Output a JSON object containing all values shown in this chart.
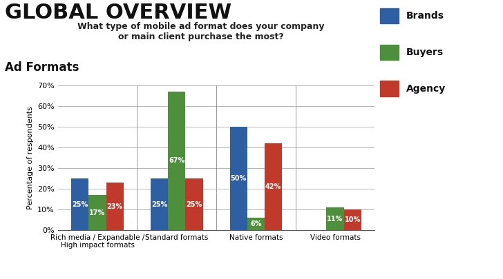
{
  "title_main": "GLOBAL OVERVIEW",
  "title_sub": "Ad Formats",
  "question": "What type of mobile ad format does your company\nor main client purchase the most?",
  "categories": [
    "Rich media / Expandable /\nHigh impact formats",
    "Standard formats",
    "Native formats",
    "Video formats"
  ],
  "series": {
    "Brands": [
      25,
      25,
      50,
      0
    ],
    "Buyers": [
      17,
      67,
      6,
      11
    ],
    "Agency": [
      23,
      25,
      42,
      10
    ]
  },
  "colors": {
    "Brands": "#2e5fa3",
    "Buyers": "#4e8f3c",
    "Agency": "#c0392b"
  },
  "ylabel": "Percentage of respondents",
  "ylim": [
    0,
    70
  ],
  "yticks": [
    0,
    10,
    20,
    30,
    40,
    50,
    60,
    70
  ],
  "ytick_labels": [
    "0%",
    "10%",
    "20%",
    "30%",
    "40%",
    "50%",
    "60%",
    "70%"
  ],
  "bar_width": 0.22,
  "background_color": "#ffffff",
  "label_color": "#ffffff",
  "label_fontsize": 7.0,
  "title_fontsize_main": 22,
  "title_fontsize_sub": 12,
  "question_fontsize": 9.0,
  "legend_fontsize": 10
}
